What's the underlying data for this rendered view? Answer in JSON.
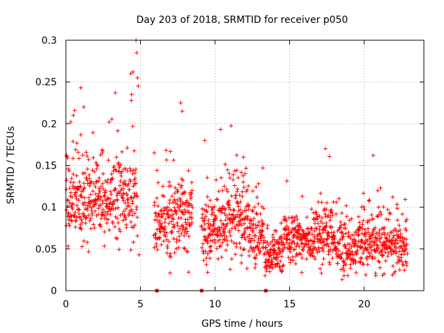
{
  "chart_data": {
    "type": "scatter",
    "title": "Day 203 of 2018, SRMTID for receiver p050",
    "xlabel": "GPS time / hours",
    "ylabel": "SRMTID / TECUs",
    "xlim": [
      0,
      24
    ],
    "ylim": [
      0,
      0.3
    ],
    "x_ticks": [
      0,
      5,
      10,
      15,
      20
    ],
    "y_ticks": [
      0,
      0.05,
      0.1,
      0.15,
      0.2,
      0.25,
      0.3
    ],
    "x_tick_labels": [
      "0",
      "5",
      "10",
      "15",
      "20"
    ],
    "y_tick_labels": [
      "0",
      "0.05",
      "0.1",
      "0.15",
      "0.2",
      "0.25",
      "0.3"
    ],
    "grid": true,
    "series": [
      {
        "name": "SRMTID",
        "color": "#ff0000",
        "marker": "plus",
        "segments": [
          {
            "x_start": 0.0,
            "x_end": 1.6,
            "mean": 0.11,
            "spread": 0.03,
            "n": 140,
            "seed": 11
          },
          {
            "x_start": 1.6,
            "x_end": 3.2,
            "mean": 0.105,
            "spread": 0.028,
            "n": 130,
            "seed": 12
          },
          {
            "x_start": 3.2,
            "x_end": 4.8,
            "mean": 0.11,
            "spread": 0.032,
            "n": 130,
            "seed": 13
          },
          {
            "x_start": 5.9,
            "x_end": 7.3,
            "mean": 0.085,
            "spread": 0.028,
            "n": 110,
            "seed": 14
          },
          {
            "x_start": 7.3,
            "x_end": 8.5,
            "mean": 0.09,
            "spread": 0.032,
            "n": 100,
            "seed": 15
          },
          {
            "x_start": 9.1,
            "x_end": 10.6,
            "mean": 0.075,
            "spread": 0.028,
            "n": 130,
            "seed": 16
          },
          {
            "x_start": 10.6,
            "x_end": 12.2,
            "mean": 0.085,
            "spread": 0.03,
            "n": 140,
            "seed": 17
          },
          {
            "x_start": 12.2,
            "x_end": 13.3,
            "mean": 0.07,
            "spread": 0.025,
            "n": 90,
            "seed": 18
          },
          {
            "x_start": 13.3,
            "x_end": 14.6,
            "mean": 0.045,
            "spread": 0.015,
            "n": 110,
            "seed": 19
          },
          {
            "x_start": 14.6,
            "x_end": 16.5,
            "mean": 0.06,
            "spread": 0.018,
            "n": 160,
            "seed": 20
          },
          {
            "x_start": 16.5,
            "x_end": 18.0,
            "mean": 0.065,
            "spread": 0.022,
            "n": 130,
            "seed": 21
          },
          {
            "x_start": 18.0,
            "x_end": 19.8,
            "mean": 0.05,
            "spread": 0.018,
            "n": 150,
            "seed": 22
          },
          {
            "x_start": 19.8,
            "x_end": 21.2,
            "mean": 0.06,
            "spread": 0.022,
            "n": 120,
            "seed": 23
          },
          {
            "x_start": 21.2,
            "x_end": 22.9,
            "mean": 0.055,
            "spread": 0.02,
            "n": 140,
            "seed": 24
          }
        ],
        "highlights": [
          {
            "x": 4.35,
            "y": 0.26
          },
          {
            "x": 4.5,
            "y": 0.262
          },
          {
            "x": 4.7,
            "y": 0.3
          },
          {
            "x": 4.75,
            "y": 0.285
          },
          {
            "x": 4.8,
            "y": 0.255
          },
          {
            "x": 4.85,
            "y": 0.245
          },
          {
            "x": 1.0,
            "y": 0.243
          },
          {
            "x": 0.5,
            "y": 0.21
          },
          {
            "x": 1.2,
            "y": 0.22
          },
          {
            "x": 2.9,
            "y": 0.202
          },
          {
            "x": 7.7,
            "y": 0.225
          },
          {
            "x": 7.8,
            "y": 0.215
          },
          {
            "x": 9.3,
            "y": 0.18
          },
          {
            "x": 4.4,
            "y": 0.235
          },
          {
            "x": 17.4,
            "y": 0.17
          },
          {
            "x": 20.6,
            "y": 0.162
          },
          {
            "x": 11.9,
            "y": 0.16
          },
          {
            "x": 4.9,
            "y": 0.043
          }
        ],
        "zero_points": [
          6.1,
          9.1,
          13.4
        ]
      }
    ]
  }
}
